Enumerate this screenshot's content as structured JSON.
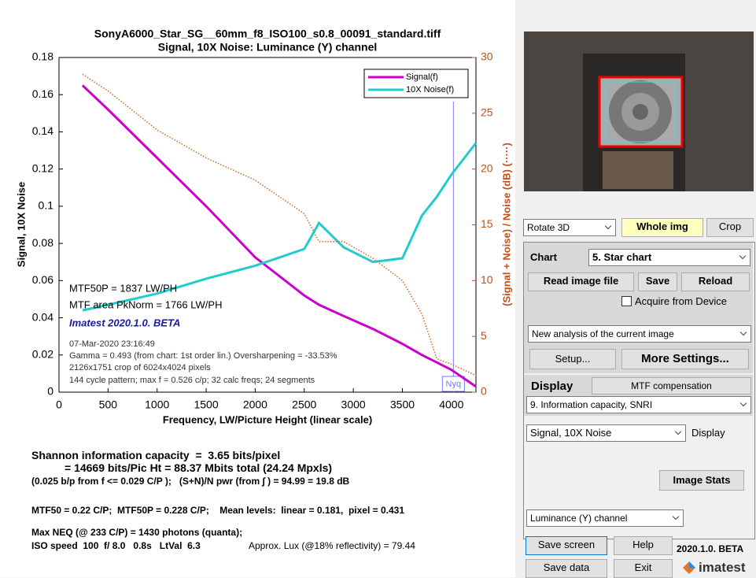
{
  "chart_data": {
    "type": "line",
    "title": "SonyA6000_Star_SG__60mm_f8_ISO100_s0.8_00091_standard.tiff",
    "subtitle": "Signal, 10X Noise:  Luminance (Y) channel",
    "x_label": "Frequency, LW/Picture Height (linear scale)",
    "y_label": "Signal, 10X Noise",
    "y2_label": "(Signal + Noise) / Noise (dB)  (·····)",
    "x": [
      240,
      500,
      1000,
      1500,
      2000,
      2500,
      2650,
      2900,
      3200,
      3500,
      3700,
      3850,
      4000,
      4250
    ],
    "xlim": [
      0,
      4250
    ],
    "xticks": [
      0,
      500,
      1000,
      1500,
      2000,
      2500,
      3000,
      3500,
      4000
    ],
    "ylim": [
      0,
      0.18
    ],
    "yticks": [
      0,
      0.02,
      0.04,
      0.06,
      0.08,
      0.1,
      0.12,
      0.14,
      0.16,
      0.18
    ],
    "y2lim": [
      0,
      30
    ],
    "y2ticks": [
      0,
      5,
      10,
      15,
      20,
      25,
      30
    ],
    "series": [
      {
        "name": "Signal(f)",
        "color": "#cc00cc",
        "values": [
          0.165,
          0.152,
          0.126,
          0.1,
          0.0725,
          0.052,
          0.047,
          0.041,
          0.034,
          0.026,
          0.02,
          0.016,
          0.012,
          0.003
        ]
      },
      {
        "name": "10X Noise(f)",
        "color": "#22cccc",
        "values": [
          0.044,
          0.047,
          0.053,
          0.061,
          0.068,
          0.077,
          0.091,
          0.078,
          0.07,
          0.072,
          0.095,
          0.105,
          0.117,
          0.134
        ]
      },
      {
        "color": "#d2691e",
        "axis": "y2",
        "style": "dotted",
        "values": [
          28.5,
          27,
          23.5,
          21,
          19,
          16,
          13.5,
          13.5,
          12,
          10,
          7,
          3,
          2.5,
          1.5
        ]
      }
    ],
    "vlines": [
      {
        "value": 4020,
        "label": "Nyq",
        "color": "#7777ff"
      }
    ],
    "legend": "upper right",
    "annotations": [
      "MTF50P = 1837 LW/PH",
      "MTF area PkNorm = 1766 LW/PH",
      "Imatest 2020.1.0. BETA",
      "07-Mar-2020 23:16:49",
      "Gamma = 0.493 (from chart: 1st order lin.)  Oversharpening = -33.53%",
      "2126x1751 crop of 6024x4024 pixels",
      "144 cycle pattern; max f = 0.526 c/p;  32 calc freqs;  24 segments"
    ]
  },
  "results": {
    "capacity": "Shannon information capacity  =  3.65 bits/pixel",
    "bits": "= 14669 bits/Pic Ht = 88.37 Mbits total (24.24 Mpxls)",
    "snr": "(0.025 b/p from f <= 0.029 C/P );   (S+N)/N pwr (from ∫ ) = 94.99 = 19.8 dB",
    "mtf": "MTF50 = 0.22 C/P;  MTF50P = 0.228 C/P;    Mean levels:  linear = 0.181,  pixel = 0.431",
    "neq": "Max NEQ (@ 233 C/P) = 1430 photons (quanta);",
    "iso": "ISO speed  100  f/ 8.0   0.8s   LtVal  6.3",
    "lux": "Approx. Lux (@18% reflectivity) = 79.44"
  },
  "panel": {
    "rotate": "Rotate 3D",
    "whole": "Whole img",
    "crop": "Crop",
    "chart_label": "Chart",
    "chart_select": "5. Star chart",
    "read": "Read image file",
    "save": "Save",
    "reload": "Reload",
    "acquire": "Acquire from Device",
    "analysis": "New analysis of the current image",
    "setup": "Setup...",
    "more": "More Settings...",
    "display_label": "Display",
    "mtf_comp": "MTF compensation",
    "display_select": "9. Information capacity, SNRI",
    "plot_select": "Signal, 10X Noise",
    "plot_display": "Display",
    "stats": "Image Stats",
    "channel": "Luminance (Y) channel",
    "save_screen": "Save screen",
    "help": "Help",
    "version": "2020.1.0. BETA",
    "save_data": "Save data",
    "exit": "Exit",
    "brand": "imatest"
  }
}
